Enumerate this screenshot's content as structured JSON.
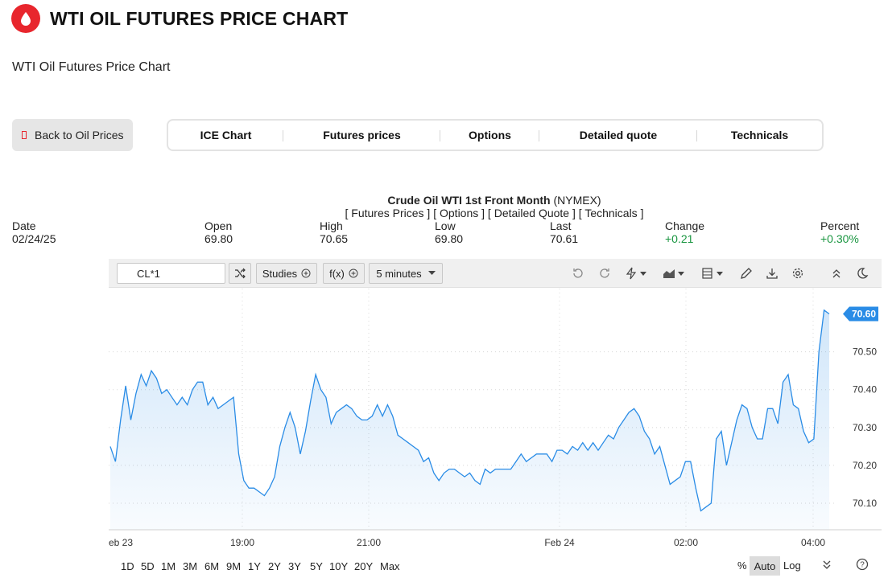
{
  "header": {
    "title": "WTI OIL FUTURES PRICE CHART",
    "subtitle": "WTI Oil Futures Price Chart"
  },
  "back_button": {
    "label": "Back to Oil Prices"
  },
  "tabs": [
    {
      "label": "ICE Chart"
    },
    {
      "label": "Futures prices"
    },
    {
      "label": "Options"
    },
    {
      "label": "Detailed quote"
    },
    {
      "label": "Technicals"
    }
  ],
  "quote": {
    "instrument": "Crude Oil WTI 1st Front Month",
    "exchange": "(NYMEX)",
    "links": [
      "Futures Prices",
      "Options",
      "Detailed Quote",
      "Technicals"
    ],
    "columns": [
      {
        "label": "Date",
        "value": "02/24/25"
      },
      {
        "label": "Open",
        "value": "69.80"
      },
      {
        "label": "High",
        "value": "70.65"
      },
      {
        "label": "Low",
        "value": "69.80"
      },
      {
        "label": "Last",
        "value": "70.61"
      },
      {
        "label": "Change",
        "value": "+0.21"
      },
      {
        "label": "Percent",
        "value": "+0.30%"
      }
    ]
  },
  "toolbar": {
    "symbol": "CL*1",
    "studies_label": "Studies",
    "fx_label": "f(x)",
    "interval_label": "5 minutes"
  },
  "range_buttons": [
    "1D",
    "5D",
    "1M",
    "3M",
    "6M",
    "9M",
    "1Y",
    "2Y",
    "3Y",
    "5Y",
    "10Y",
    "20Y",
    "Max"
  ],
  "scale_options": {
    "percent": "%",
    "auto": "Auto",
    "log": "Log"
  },
  "colors": {
    "accent": "#e8262d",
    "line": "#2a8ce6",
    "positive": "#1a9641"
  },
  "chart_data": {
    "type": "area",
    "x_labels": [
      "eb 23",
      "19:00",
      "21:00",
      "Feb 24",
      "02:00",
      "04:00"
    ],
    "y_ticks": [
      "70.10",
      "70.20",
      "70.30",
      "70.40",
      "70.50"
    ],
    "ylim": [
      70.03,
      70.65
    ],
    "last_price_label": "70.60",
    "values": [
      70.25,
      70.21,
      70.32,
      70.41,
      70.32,
      70.39,
      70.44,
      70.41,
      70.45,
      70.43,
      70.39,
      70.4,
      70.38,
      70.36,
      70.38,
      70.36,
      70.4,
      70.42,
      70.42,
      70.36,
      70.38,
      70.35,
      70.36,
      70.37,
      70.38,
      70.23,
      70.16,
      70.14,
      70.14,
      70.13,
      70.12,
      70.14,
      70.17,
      70.25,
      70.3,
      70.34,
      70.3,
      70.23,
      70.29,
      70.37,
      70.44,
      70.4,
      70.38,
      70.31,
      70.34,
      70.35,
      70.36,
      70.35,
      70.33,
      70.32,
      70.32,
      70.33,
      70.36,
      70.33,
      70.36,
      70.33,
      70.28,
      70.27,
      70.26,
      70.25,
      70.24,
      70.21,
      70.22,
      70.18,
      70.16,
      70.18,
      70.19,
      70.19,
      70.18,
      70.17,
      70.18,
      70.16,
      70.15,
      70.19,
      70.18,
      70.19,
      70.19,
      70.19,
      70.19,
      70.21,
      70.23,
      70.21,
      70.22,
      70.23,
      70.23,
      70.23,
      70.21,
      70.24,
      70.24,
      70.23,
      70.25,
      70.24,
      70.26,
      70.24,
      70.26,
      70.24,
      70.26,
      70.28,
      70.27,
      70.3,
      70.32,
      70.34,
      70.35,
      70.33,
      70.29,
      70.27,
      70.23,
      70.25,
      70.2,
      70.15,
      70.16,
      70.17,
      70.21,
      70.21,
      70.14,
      70.08,
      70.09,
      70.1,
      70.27,
      70.29,
      70.2,
      70.26,
      70.32,
      70.36,
      70.35,
      70.3,
      70.27,
      70.27,
      70.35,
      70.35,
      70.31,
      70.42,
      70.44,
      70.36,
      70.35,
      70.29,
      70.26,
      70.27,
      70.5,
      70.61,
      70.6
    ]
  }
}
